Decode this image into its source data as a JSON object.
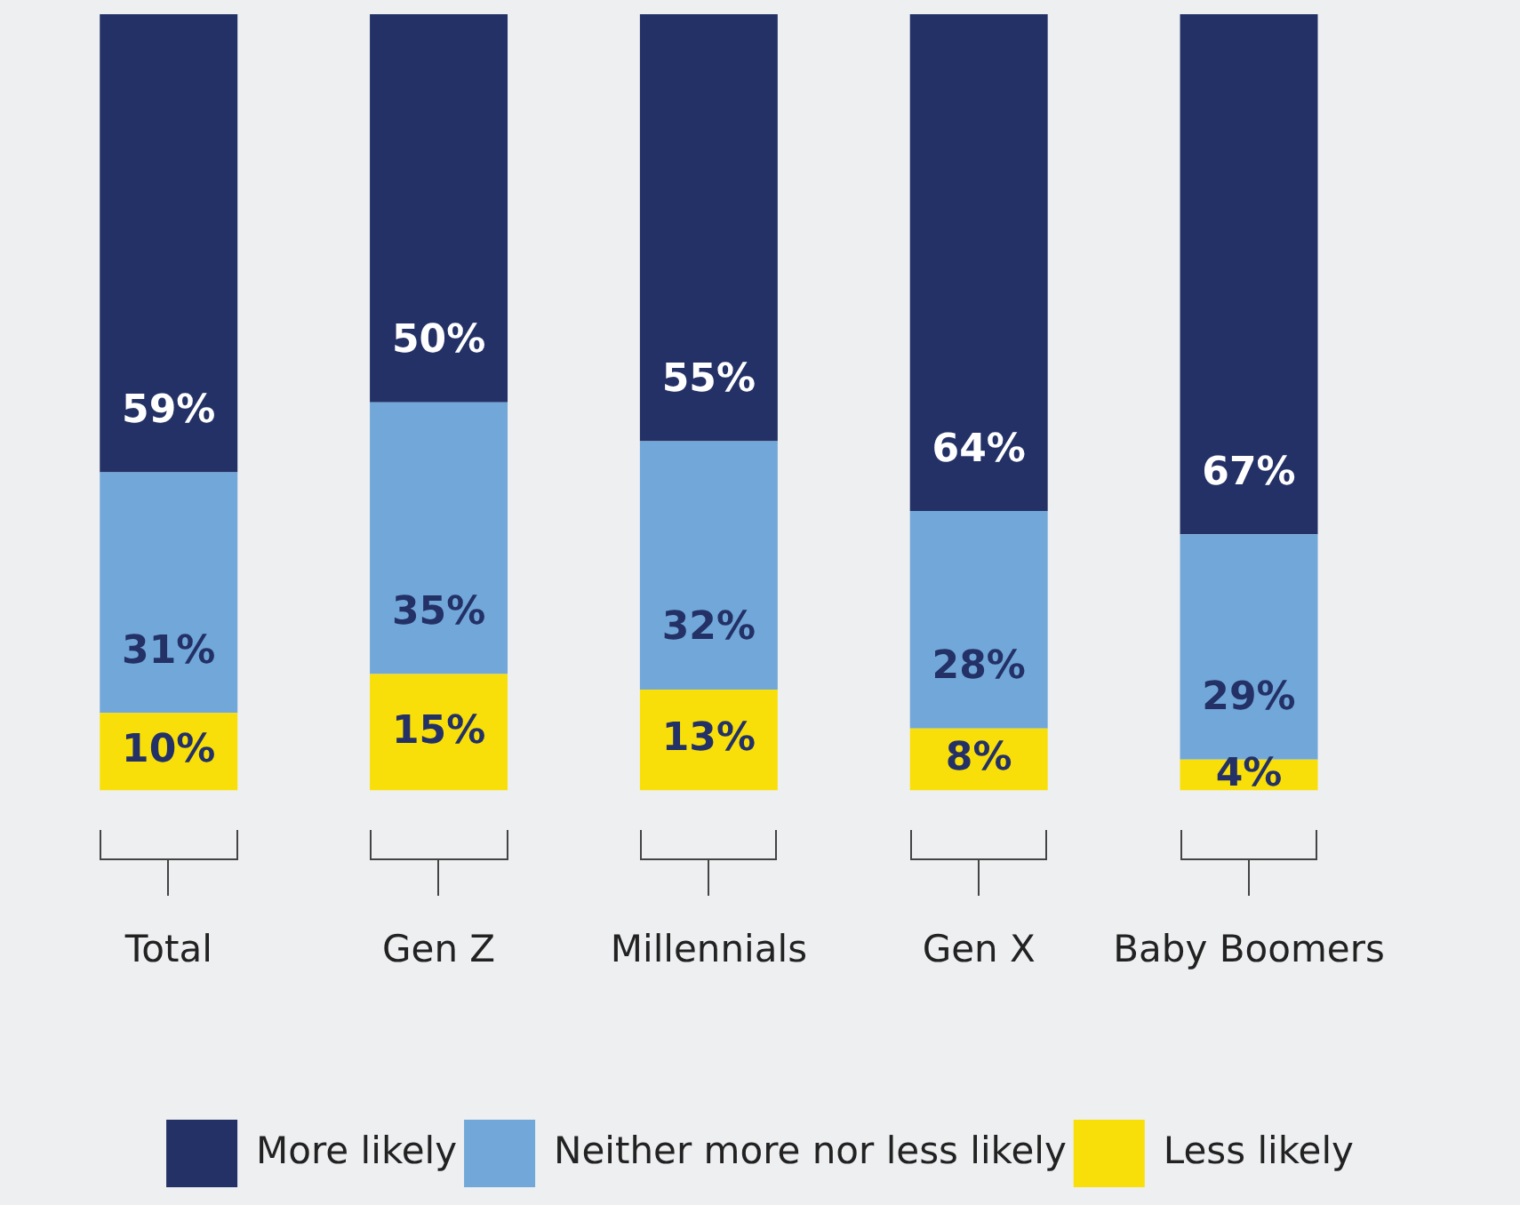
{
  "chart_data": {
    "type": "bar",
    "stacked": true,
    "legend": "bottom",
    "grid": false,
    "tick_labels": "x",
    "categories": [
      "Total",
      "Gen Z",
      "Millennials",
      "Gen X",
      "Baby Boomers"
    ],
    "series": [
      {
        "name": "Less likely",
        "color": "#f9df0a",
        "values": [
          10,
          15,
          13,
          8,
          4
        ],
        "value_labels": [
          "10%",
          "15%",
          "13%",
          "8%",
          "4%"
        ]
      },
      {
        "name": "Neither more nor less likely",
        "color": "#71a7d9",
        "values": [
          31,
          35,
          32,
          28,
          29
        ],
        "value_labels": [
          "31%",
          "35%",
          "32%",
          "28%",
          "29%"
        ]
      },
      {
        "name": "More likely",
        "color": "#233166",
        "values": [
          59,
          50,
          55,
          64,
          67
        ],
        "value_labels": [
          "59%",
          "50%",
          "55%",
          "64%",
          "67%"
        ]
      }
    ]
  }
}
